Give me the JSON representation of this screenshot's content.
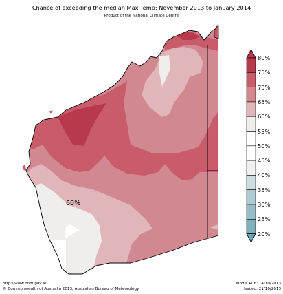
{
  "title": "Chance of exceeding the median Max Temp: November 2013 to January 2014",
  "subtitle": "Product of the National Climate Centre",
  "map_label": "60%",
  "colors": {
    "c80": "#b8394c",
    "c75": "#c85c6a",
    "c70": "#d28890",
    "c65": "#e0b6ba",
    "c60": "#efeeec",
    "c55": "#ffffff",
    "c45": "#eef1f2",
    "c40": "#cfdde1",
    "c35": "#b0ccd3",
    "c30": "#97bec7",
    "c25": "#7fb0bc",
    "c20": "#6aa6b5"
  },
  "legend": [
    "80%",
    "75%",
    "70%",
    "65%",
    "60%",
    "55%",
    "50%",
    "45%",
    "40%",
    "35%",
    "30%",
    "25%",
    "20%"
  ],
  "footer": {
    "url": "http://www.bom.gov.au",
    "copyright": "©  Commonwealth of Australia 2013, Australian Bureau of Meteorology",
    "model_run": "Model Run: 14/10/2013",
    "issued": "Issued: 21/10/2013"
  }
}
